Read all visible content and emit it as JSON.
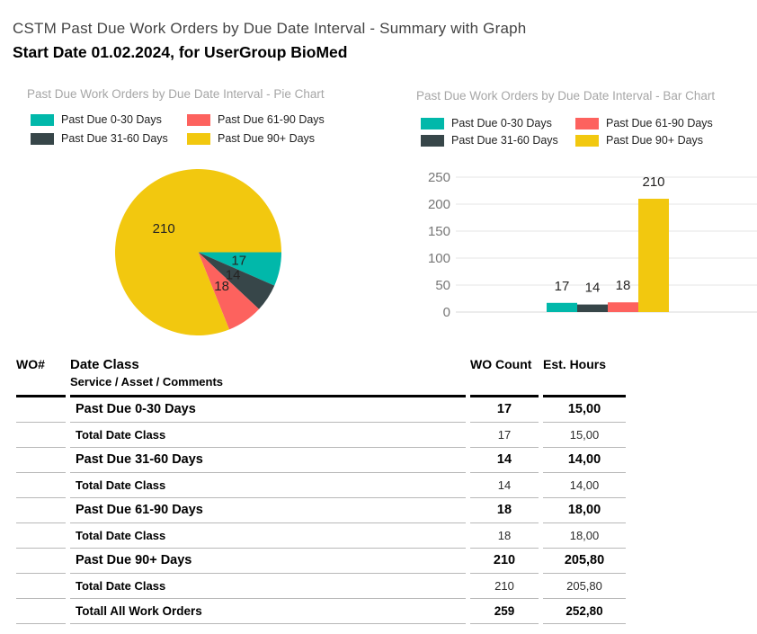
{
  "header": {
    "title": "CSTM Past Due Work Orders by Due Date Interval - Summary with Graph",
    "subtitle": "Start Date 01.02.2024, for UserGroup BioMed"
  },
  "palette": {
    "series": [
      "#01B8AA",
      "#374649",
      "#FD625E",
      "#F2C80F"
    ],
    "axis_text": "#777777",
    "gridline": "#e6e6e6",
    "baseline": "#d9d9d9",
    "chart_title_text": "#a6a6a6",
    "data_label_text": "#252423"
  },
  "chart_data": [
    {
      "type": "pie",
      "title": "Past Due Work Orders by Due Date Interval - Pie Chart",
      "legend_position": "top",
      "categories": [
        "Past Due 0-30 Days",
        "Past Due 31-60 Days",
        "Past Due 61-90 Days",
        "Past Due 90+ Days"
      ],
      "values": [
        17,
        14,
        18,
        210
      ],
      "colors": [
        "#01B8AA",
        "#374649",
        "#FD625E",
        "#F2C80F"
      ],
      "start_angle_deg": 0,
      "direction": "clockwise",
      "data_labels": true
    },
    {
      "type": "bar",
      "title": "Past Due Work Orders by Due Date Interval - Bar Chart",
      "legend_position": "top",
      "categories": [
        "Past Due 0-30 Days",
        "Past Due 31-60 Days",
        "Past Due 61-90 Days",
        "Past Due 90+ Days"
      ],
      "values": [
        17,
        14,
        18,
        210
      ],
      "colors": [
        "#01B8AA",
        "#374649",
        "#FD625E",
        "#F2C80F"
      ],
      "xlabel": "",
      "ylabel": "",
      "ylim": [
        0,
        250
      ],
      "yticks": [
        0,
        50,
        100,
        150,
        200,
        250
      ],
      "grid": true,
      "data_labels": true
    }
  ],
  "table": {
    "header": {
      "col_wo": "WO#",
      "col_class_line1": "Date Class",
      "col_class_line2": "Service / Asset / Comments",
      "col_count": "WO Count",
      "col_hours": "Est. Hours"
    },
    "rows": [
      {
        "label": "Past Due 0-30 Days",
        "wo_count": "17",
        "est_hours": "15,00",
        "style": "category"
      },
      {
        "label": "Total Date Class",
        "wo_count": "17",
        "est_hours": "15,00",
        "style": "total"
      },
      {
        "label": "Past Due 31-60 Days",
        "wo_count": "14",
        "est_hours": "14,00",
        "style": "category"
      },
      {
        "label": "Total Date Class",
        "wo_count": "14",
        "est_hours": "14,00",
        "style": "total"
      },
      {
        "label": "Past Due 61-90 Days",
        "wo_count": "18",
        "est_hours": "18,00",
        "style": "category"
      },
      {
        "label": "Total Date Class",
        "wo_count": "18",
        "est_hours": "18,00",
        "style": "total"
      },
      {
        "label": "Past Due 90+ Days",
        "wo_count": "210",
        "est_hours": "205,80",
        "style": "category"
      },
      {
        "label": "Total Date Class",
        "wo_count": "210",
        "est_hours": "205,80",
        "style": "total"
      },
      {
        "label": "Totall All Work Orders",
        "wo_count": "259",
        "est_hours": "252,80",
        "style": "grand_total"
      }
    ]
  }
}
